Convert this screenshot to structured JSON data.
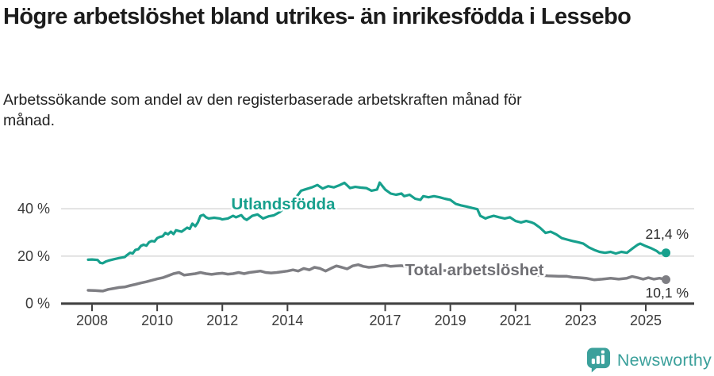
{
  "header": {
    "title": "Högre arbetslöshet bland utrikes- än inrikesfödda i Lessebo",
    "subtitle": "Arbetssökande som andel av den registerbaserade arbetskraften månad för månad."
  },
  "footer": {
    "brand": "Newsworthy"
  },
  "colors": {
    "series_teal": "#17a08d",
    "series_gray": "#7e7e83",
    "label_gray": "#6f6f74",
    "grid": "#d9d9d9",
    "axis": "#3f3f3f",
    "tick_text": "#3b3b3b",
    "value_text": "#2b2b2b",
    "logo_teal": "#3ba09b"
  },
  "chart_data": {
    "type": "line",
    "title": "Högre arbetslöshet bland utrikes- än inrikesfödda i Lessebo",
    "subtitle": "Arbetssökande som andel av den registerbaserade arbetskraften månad för månad.",
    "xlabel": "",
    "ylabel": "",
    "xlim": [
      2007.8,
      2025.8
    ],
    "ylim": [
      0,
      55
    ],
    "grid": "horizontal",
    "legend_position": "inline-labels",
    "x_ticks": [
      2008,
      2010,
      2012,
      2014,
      2017,
      2019,
      2021,
      2023,
      2025
    ],
    "x_tick_labels": [
      "2008",
      "2010",
      "2012",
      "2014",
      "2017",
      "2019",
      "2021",
      "2023",
      "2025"
    ],
    "y_ticks": [
      0,
      20,
      40
    ],
    "y_tick_labels": [
      "0 %",
      "20 %",
      "40 %"
    ],
    "series": [
      {
        "name": "Utlandsfödda",
        "end_label": "21,4 %",
        "end_value": 21.4,
        "points": [
          [
            2007.88,
            18.5
          ],
          [
            2008.0,
            18.6
          ],
          [
            2008.17,
            18.4
          ],
          [
            2008.25,
            17.2
          ],
          [
            2008.33,
            17.0
          ],
          [
            2008.42,
            17.7
          ],
          [
            2008.5,
            18.1
          ],
          [
            2008.67,
            18.7
          ],
          [
            2008.83,
            19.2
          ],
          [
            2009.0,
            19.6
          ],
          [
            2009.08,
            20.5
          ],
          [
            2009.17,
            21.4
          ],
          [
            2009.25,
            21.1
          ],
          [
            2009.33,
            22.6
          ],
          [
            2009.42,
            22.9
          ],
          [
            2009.5,
            24.3
          ],
          [
            2009.58,
            24.8
          ],
          [
            2009.67,
            24.4
          ],
          [
            2009.75,
            25.9
          ],
          [
            2009.83,
            26.4
          ],
          [
            2009.92,
            26.2
          ],
          [
            2010.0,
            27.6
          ],
          [
            2010.08,
            28.1
          ],
          [
            2010.17,
            28.4
          ],
          [
            2010.25,
            29.8
          ],
          [
            2010.33,
            29.2
          ],
          [
            2010.42,
            30.3
          ],
          [
            2010.5,
            29.3
          ],
          [
            2010.58,
            30.9
          ],
          [
            2010.75,
            30.3
          ],
          [
            2010.92,
            32.0
          ],
          [
            2011.0,
            31.5
          ],
          [
            2011.08,
            33.7
          ],
          [
            2011.17,
            32.6
          ],
          [
            2011.25,
            34.2
          ],
          [
            2011.33,
            37.0
          ],
          [
            2011.42,
            37.4
          ],
          [
            2011.5,
            36.4
          ],
          [
            2011.58,
            35.9
          ],
          [
            2011.75,
            36.2
          ],
          [
            2011.92,
            35.9
          ],
          [
            2012.0,
            35.5
          ],
          [
            2012.17,
            35.9
          ],
          [
            2012.33,
            37.0
          ],
          [
            2012.42,
            36.4
          ],
          [
            2012.58,
            37.3
          ],
          [
            2012.67,
            35.9
          ],
          [
            2012.75,
            35.3
          ],
          [
            2012.92,
            37.0
          ],
          [
            2013.08,
            37.6
          ],
          [
            2013.25,
            35.9
          ],
          [
            2013.42,
            36.8
          ],
          [
            2013.58,
            37.2
          ],
          [
            2013.75,
            38.5
          ],
          [
            2013.92,
            40.5
          ],
          [
            2014.08,
            42.5
          ],
          [
            2014.25,
            44.5
          ],
          [
            2014.42,
            47.6
          ],
          [
            2014.58,
            48.3
          ],
          [
            2014.75,
            49.0
          ],
          [
            2014.92,
            50.0
          ],
          [
            2015.08,
            48.5
          ],
          [
            2015.25,
            49.5
          ],
          [
            2015.42,
            49.0
          ],
          [
            2015.58,
            49.8
          ],
          [
            2015.75,
            50.9
          ],
          [
            2015.92,
            48.7
          ],
          [
            2016.08,
            49.2
          ],
          [
            2016.25,
            48.9
          ],
          [
            2016.42,
            48.7
          ],
          [
            2016.58,
            47.6
          ],
          [
            2016.75,
            48.1
          ],
          [
            2016.83,
            51.0
          ],
          [
            2017.0,
            48.1
          ],
          [
            2017.17,
            46.4
          ],
          [
            2017.33,
            45.9
          ],
          [
            2017.5,
            46.4
          ],
          [
            2017.58,
            45.3
          ],
          [
            2017.75,
            45.9
          ],
          [
            2017.92,
            44.2
          ],
          [
            2018.08,
            43.7
          ],
          [
            2018.17,
            45.3
          ],
          [
            2018.33,
            44.8
          ],
          [
            2018.5,
            45.3
          ],
          [
            2018.67,
            44.8
          ],
          [
            2018.83,
            44.2
          ],
          [
            2019.0,
            43.7
          ],
          [
            2019.17,
            42.0
          ],
          [
            2019.33,
            41.4
          ],
          [
            2019.5,
            40.9
          ],
          [
            2019.67,
            40.3
          ],
          [
            2019.83,
            39.8
          ],
          [
            2019.92,
            37.0
          ],
          [
            2020.08,
            35.9
          ],
          [
            2020.17,
            36.4
          ],
          [
            2020.33,
            37.0
          ],
          [
            2020.5,
            36.4
          ],
          [
            2020.67,
            35.9
          ],
          [
            2020.83,
            36.4
          ],
          [
            2021.0,
            34.8
          ],
          [
            2021.17,
            34.2
          ],
          [
            2021.33,
            34.8
          ],
          [
            2021.5,
            34.2
          ],
          [
            2021.58,
            33.7
          ],
          [
            2021.75,
            32.0
          ],
          [
            2021.92,
            29.8
          ],
          [
            2022.08,
            30.3
          ],
          [
            2022.25,
            29.2
          ],
          [
            2022.42,
            27.6
          ],
          [
            2022.58,
            27.0
          ],
          [
            2022.75,
            26.4
          ],
          [
            2022.92,
            25.9
          ],
          [
            2023.08,
            25.3
          ],
          [
            2023.25,
            23.7
          ],
          [
            2023.42,
            22.6
          ],
          [
            2023.58,
            21.8
          ],
          [
            2023.75,
            21.4
          ],
          [
            2023.92,
            21.8
          ],
          [
            2024.08,
            21.1
          ],
          [
            2024.25,
            21.8
          ],
          [
            2024.42,
            21.4
          ],
          [
            2024.58,
            23.1
          ],
          [
            2024.75,
            24.8
          ],
          [
            2024.83,
            25.3
          ],
          [
            2025.0,
            24.2
          ],
          [
            2025.17,
            23.3
          ],
          [
            2025.33,
            22.2
          ],
          [
            2025.42,
            21.2
          ],
          [
            2025.62,
            21.4
          ]
        ]
      },
      {
        "name": "Total arbetslöshet",
        "end_label": "10,1 %",
        "end_value": 10.1,
        "points": [
          [
            2007.88,
            5.6
          ],
          [
            2008.08,
            5.5
          ],
          [
            2008.33,
            5.3
          ],
          [
            2008.5,
            6.0
          ],
          [
            2008.67,
            6.4
          ],
          [
            2008.83,
            6.8
          ],
          [
            2009.0,
            7.0
          ],
          [
            2009.17,
            7.6
          ],
          [
            2009.33,
            8.1
          ],
          [
            2009.5,
            8.7
          ],
          [
            2009.67,
            9.2
          ],
          [
            2009.83,
            9.8
          ],
          [
            2010.0,
            10.4
          ],
          [
            2010.17,
            10.9
          ],
          [
            2010.33,
            11.7
          ],
          [
            2010.5,
            12.6
          ],
          [
            2010.67,
            13.1
          ],
          [
            2010.83,
            12.0
          ],
          [
            2011.0,
            12.3
          ],
          [
            2011.17,
            12.6
          ],
          [
            2011.33,
            13.1
          ],
          [
            2011.5,
            12.6
          ],
          [
            2011.67,
            12.3
          ],
          [
            2011.83,
            12.6
          ],
          [
            2012.0,
            12.8
          ],
          [
            2012.17,
            12.4
          ],
          [
            2012.33,
            12.6
          ],
          [
            2012.5,
            13.1
          ],
          [
            2012.67,
            12.6
          ],
          [
            2012.83,
            13.1
          ],
          [
            2013.0,
            13.4
          ],
          [
            2013.17,
            13.7
          ],
          [
            2013.33,
            13.1
          ],
          [
            2013.5,
            12.9
          ],
          [
            2013.67,
            13.1
          ],
          [
            2013.83,
            13.4
          ],
          [
            2014.0,
            13.7
          ],
          [
            2014.17,
            14.2
          ],
          [
            2014.33,
            13.7
          ],
          [
            2014.5,
            14.8
          ],
          [
            2014.67,
            14.2
          ],
          [
            2014.83,
            15.3
          ],
          [
            2015.0,
            14.8
          ],
          [
            2015.17,
            13.7
          ],
          [
            2015.33,
            14.8
          ],
          [
            2015.5,
            15.9
          ],
          [
            2015.67,
            15.3
          ],
          [
            2015.83,
            14.6
          ],
          [
            2016.0,
            15.9
          ],
          [
            2016.17,
            16.4
          ],
          [
            2016.33,
            15.7
          ],
          [
            2016.5,
            15.3
          ],
          [
            2016.67,
            15.5
          ],
          [
            2016.83,
            15.9
          ],
          [
            2017.0,
            16.2
          ],
          [
            2017.17,
            15.7
          ],
          [
            2017.33,
            15.9
          ],
          [
            2017.5,
            16.0
          ],
          [
            2017.67,
            15.5
          ],
          [
            2017.83,
            15.0
          ],
          [
            2018.0,
            14.6
          ],
          [
            2018.33,
            14.3
          ],
          [
            2018.67,
            14.0
          ],
          [
            2019.0,
            13.8
          ],
          [
            2019.33,
            13.5
          ],
          [
            2019.67,
            13.2
          ],
          [
            2020.0,
            13.0
          ],
          [
            2020.33,
            13.4
          ],
          [
            2020.67,
            13.1
          ],
          [
            2021.0,
            12.8
          ],
          [
            2021.33,
            12.4
          ],
          [
            2021.67,
            12.0
          ],
          [
            2022.0,
            11.7
          ],
          [
            2022.33,
            11.5
          ],
          [
            2022.58,
            11.5
          ],
          [
            2022.75,
            11.1
          ],
          [
            2023.0,
            10.9
          ],
          [
            2023.17,
            10.7
          ],
          [
            2023.42,
            10.0
          ],
          [
            2023.67,
            10.3
          ],
          [
            2023.92,
            10.7
          ],
          [
            2024.17,
            10.3
          ],
          [
            2024.42,
            10.7
          ],
          [
            2024.58,
            11.4
          ],
          [
            2024.75,
            10.9
          ],
          [
            2024.92,
            10.3
          ],
          [
            2025.08,
            10.9
          ],
          [
            2025.25,
            10.3
          ],
          [
            2025.42,
            10.7
          ],
          [
            2025.62,
            10.1
          ]
        ]
      }
    ]
  }
}
